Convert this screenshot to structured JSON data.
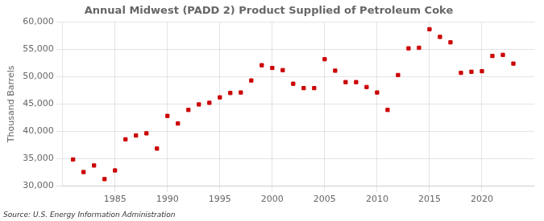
{
  "chart_data": {
    "type": "scatter",
    "title": "Annual Midwest (PADD 2) Product Supplied of Petroleum Coke",
    "ylabel": "Thousand Barrels",
    "annotations": [
      "Source: U.S. Energy Information Administration"
    ],
    "color": "#cc0000",
    "marker": "square",
    "grid": true,
    "x": [
      1981,
      1982,
      1983,
      1984,
      1985,
      1986,
      1987,
      1988,
      1989,
      1990,
      1991,
      1992,
      1993,
      1994,
      1995,
      1996,
      1997,
      1998,
      1999,
      2000,
      2001,
      2002,
      2003,
      2004,
      2005,
      2006,
      2007,
      2008,
      2009,
      2010,
      2011,
      2012,
      2013,
      2014,
      2015,
      2016,
      2017,
      2018,
      2019,
      2020,
      2021,
      2022,
      2023
    ],
    "values": [
      34800,
      32500,
      33700,
      31200,
      32800,
      38500,
      39200,
      39600,
      36800,
      42800,
      41400,
      43900,
      44900,
      45200,
      46200,
      47000,
      47100,
      49300,
      52100,
      51600,
      51200,
      48700,
      47900,
      47900,
      53200,
      51100,
      49000,
      49000,
      48100,
      47100,
      43900,
      50300,
      55200,
      55300,
      58700,
      57300,
      56300,
      50700,
      50900,
      51000,
      53800,
      54000,
      52400
    ],
    "xlim": [
      1980,
      2025
    ],
    "xticks": [
      1985,
      1990,
      1995,
      2000,
      2005,
      2010,
      2015,
      2020
    ],
    "ylim": [
      30000,
      60000
    ],
    "yticks": [
      {
        "value": 30000,
        "label": "30,000"
      },
      {
        "value": 35000,
        "label": "35,000"
      },
      {
        "value": 40000,
        "label": "40,000"
      },
      {
        "value": 45000,
        "label": "45,000"
      },
      {
        "value": 50000,
        "label": "50,000"
      },
      {
        "value": 55000,
        "label": "55,000"
      },
      {
        "value": 60000,
        "label": "60,000"
      }
    ]
  }
}
